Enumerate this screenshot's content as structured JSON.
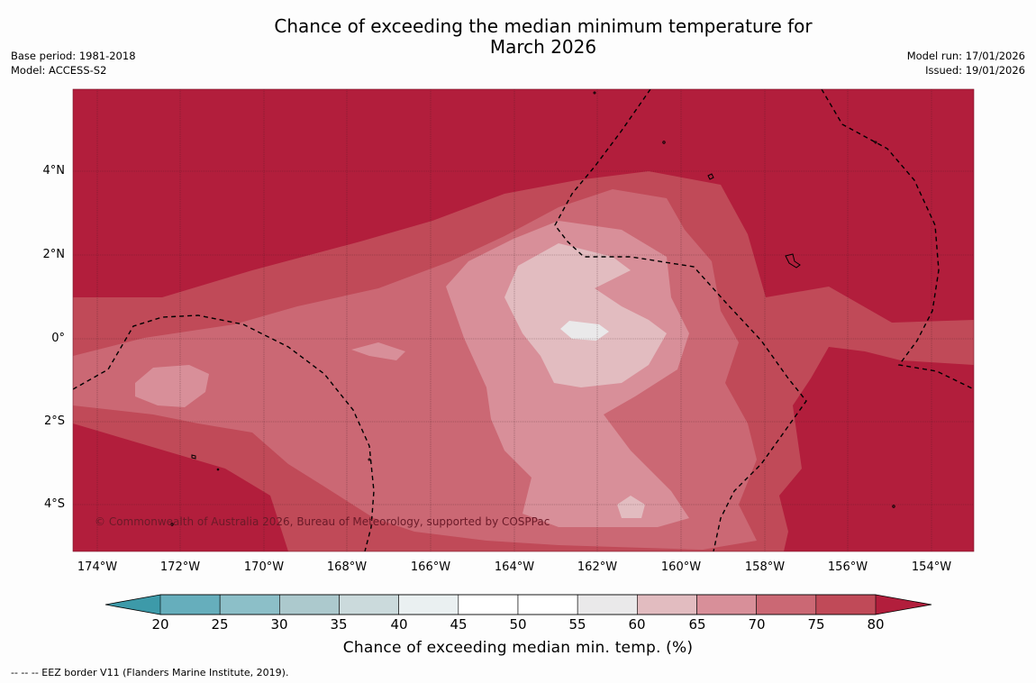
{
  "title_line1": "Chance of exceeding the median minimum temperature for",
  "title_line2": "March 2026",
  "base_period": "Base period: 1981-2018",
  "model": "Model: ACCESS-S2",
  "model_run": "Model run: 17/01/2026",
  "issued": "Issued: 19/01/2026",
  "copyright": "© Commonwealth of Australia 2026, Bureau of Meteorology, supported by COSPPac",
  "lat_ticks": [
    "4°N",
    "2°N",
    "0°",
    "2°S",
    "4°S"
  ],
  "lon_ticks": [
    "174°W",
    "172°W",
    "170°W",
    "168°W",
    "166°W",
    "164°W",
    "162°W",
    "160°W",
    "158°W",
    "156°W",
    "154°W"
  ],
  "colorbar": {
    "title": "Chance of exceeding median min. temp. (%)",
    "ticks": [
      "20",
      "25",
      "30",
      "35",
      "40",
      "45",
      "50",
      "55",
      "60",
      "65",
      "70",
      "75",
      "80"
    ],
    "colors": [
      "#3d9aa9",
      "#66aebc",
      "#8cbfc8",
      "#acc9cd",
      "#cbdadc",
      "#eaf0f1",
      "#ffffff",
      "#ffffff",
      "#eae9ea",
      "#e2bcc0",
      "#d88f99",
      "#cb6874",
      "#c04a58",
      "#b21e3c"
    ]
  },
  "eez_note": "--  --  -- EEZ border V11 (Flanders Marine Institute, 2019)."
}
